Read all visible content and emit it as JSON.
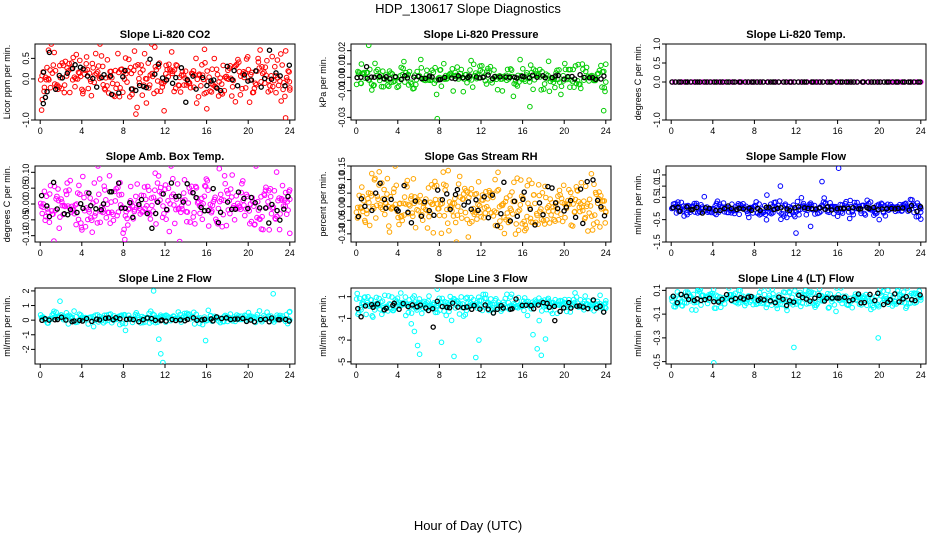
{
  "figure": {
    "title": "HDP_130617  Slope Diagnostics",
    "xlabel": "Hour of Day (UTC)"
  },
  "chart_data": [
    {
      "type": "scatter",
      "title": "Slope Li-820 CO2",
      "ylabel": "Licor ppm per min.",
      "xlim": [
        -0.5,
        24.5
      ],
      "ylim": [
        -1.0,
        0.85
      ],
      "xticks": [
        0,
        4,
        8,
        12,
        16,
        20,
        24
      ],
      "yticks": [
        -1.0,
        0.0,
        0.5
      ],
      "ytick_labels": [
        "-1.0",
        "0.0",
        "0.5"
      ],
      "grid": false,
      "series": [
        {
          "color": "#ff0000",
          "center": 0.05,
          "spread": 0.32,
          "count": 300,
          "outliers": [
            [
              0.2,
              -0.5
            ],
            [
              0.8,
              0.7
            ],
            [
              15.8,
              0.72
            ],
            [
              23.6,
              -0.95
            ]
          ]
        },
        {
          "color": "#000000",
          "center": 0.0,
          "spread": 0.22,
          "count": 60,
          "outliers": [
            [
              0.3,
              -0.6
            ],
            [
              0.5,
              -0.45
            ]
          ]
        }
      ]
    },
    {
      "type": "scatter",
      "title": "Slope Li-820 Pressure",
      "ylabel": "kPa per min.",
      "xlim": [
        -0.5,
        24.5
      ],
      "ylim": [
        -0.032,
        0.025
      ],
      "xticks": [
        0,
        4,
        8,
        12,
        16,
        20,
        24
      ],
      "yticks": [
        -0.03,
        -0.01,
        0.0,
        0.01,
        0.02
      ],
      "ytick_labels": [
        "-0.03",
        "-0.01",
        "0.00",
        "0.01",
        "0.02"
      ],
      "grid": false,
      "series": [
        {
          "color": "#00cc00",
          "center": 0.0,
          "spread": 0.005,
          "count": 260,
          "outliers": [
            [
              1.2,
              0.024
            ],
            [
              7.8,
              -0.031
            ],
            [
              16.7,
              -0.022
            ],
            [
              23.8,
              -0.025
            ],
            [
              0.5,
              0.01
            ],
            [
              18.5,
              0.012
            ]
          ]
        },
        {
          "color": "#000000",
          "center": 0.0,
          "spread": 0.0008,
          "count": 60,
          "outliers": [
            [
              1.0,
              0.008
            ]
          ]
        }
      ]
    },
    {
      "type": "scatter",
      "title": "Slope Li-820 Temp.",
      "ylabel": "degrees C per min.",
      "xlim": [
        -0.5,
        24.5
      ],
      "ylim": [
        -1.0,
        1.0
      ],
      "xticks": [
        0,
        4,
        8,
        12,
        16,
        20,
        24
      ],
      "yticks": [
        -1.0,
        0.0,
        0.5,
        1.0
      ],
      "ytick_labels": [
        "-1.0",
        "0.0",
        "0.5",
        "1.0"
      ],
      "grid": false,
      "series": [
        {
          "color": "#ff00ff",
          "center": 0.0,
          "spread": 0.0,
          "count": 80,
          "outliers": []
        },
        {
          "color": "#000000",
          "center": 0.0,
          "spread": 0.0,
          "count": 80,
          "outliers": []
        }
      ]
    },
    {
      "type": "scatter",
      "title": "Slope Amb. Box Temp.",
      "ylabel": "degrees C per min.",
      "xlim": [
        -0.5,
        24.5
      ],
      "ylim": [
        -0.12,
        0.12
      ],
      "xticks": [
        0,
        4,
        8,
        12,
        16,
        20,
        24
      ],
      "yticks": [
        -0.1,
        -0.05,
        0.0,
        0.05,
        0.1
      ],
      "ytick_labels": [
        "-0.10",
        "-0.05",
        "0.00",
        "0.05",
        "0.10"
      ],
      "grid": false,
      "series": [
        {
          "color": "#ff00ff",
          "center": 0.0,
          "spread": 0.045,
          "count": 320,
          "outliers": []
        },
        {
          "color": "#000000",
          "center": 0.0,
          "spread": 0.03,
          "count": 60,
          "outliers": []
        }
      ]
    },
    {
      "type": "scatter",
      "title": "Slope Gas Stream RH",
      "ylabel": "percent per min.",
      "xlim": [
        -0.5,
        24.5
      ],
      "ylim": [
        -0.13,
        0.15
      ],
      "xticks": [
        0,
        4,
        8,
        12,
        16,
        20,
        24
      ],
      "yticks": [
        -0.1,
        -0.05,
        0.0,
        0.05,
        0.1,
        0.15
      ],
      "ytick_labels": [
        "-0.10",
        "-0.05",
        "0.00",
        "0.05",
        "0.10",
        "0.15"
      ],
      "grid": false,
      "series": [
        {
          "color": "#ffa500",
          "center": 0.0,
          "spread": 0.05,
          "count": 340,
          "outliers": []
        },
        {
          "color": "#000000",
          "center": 0.0,
          "spread": 0.04,
          "count": 60,
          "outliers": []
        }
      ]
    },
    {
      "type": "scatter",
      "title": "Slope Sample Flow",
      "ylabel": "ml/min per min.",
      "xlim": [
        -0.5,
        24.5
      ],
      "ylim": [
        -1.5,
        1.9
      ],
      "xticks": [
        0,
        4,
        8,
        12,
        16,
        20,
        24
      ],
      "yticks": [
        -1.5,
        -0.5,
        0.5,
        1.0,
        1.5
      ],
      "ytick_labels": [
        "-1.5",
        "-0.5",
        "0.5",
        "1.0",
        "1.5"
      ],
      "grid": false,
      "series": [
        {
          "color": "#0000ff",
          "center": 0.0,
          "spread": 0.18,
          "count": 300,
          "outliers": [
            [
              10.5,
              1.0
            ],
            [
              12.0,
              -1.1
            ],
            [
              14.5,
              1.2
            ],
            [
              16.1,
              1.8
            ],
            [
              13.4,
              -0.8
            ],
            [
              9.2,
              0.6
            ],
            [
              20.0,
              -0.5
            ]
          ]
        },
        {
          "color": "#000000",
          "center": 0.0,
          "spread": 0.05,
          "count": 60,
          "outliers": []
        }
      ]
    },
    {
      "type": "scatter",
      "title": "Slope Line 2 Flow",
      "ylabel": "ml/min per min.",
      "xlim": [
        -0.5,
        24.5
      ],
      "ylim": [
        -3.0,
        2.2
      ],
      "xticks": [
        0,
        4,
        8,
        12,
        16,
        20,
        24
      ],
      "yticks": [
        -2,
        -1,
        0,
        1,
        2
      ],
      "ytick_labels": [
        "-2",
        "-1",
        "0",
        "1",
        "2"
      ],
      "grid": false,
      "series": [
        {
          "color": "#00ffff",
          "center": 0.15,
          "spread": 0.2,
          "count": 260,
          "outliers": [
            [
              1.9,
              1.3
            ],
            [
              10.9,
              2.0
            ],
            [
              11.4,
              -1.3
            ],
            [
              11.6,
              -2.3
            ],
            [
              11.8,
              -2.9
            ],
            [
              15.9,
              -1.4
            ],
            [
              22.4,
              1.8
            ],
            [
              8.2,
              -0.7
            ]
          ]
        },
        {
          "color": "#000000",
          "center": 0.05,
          "spread": 0.08,
          "count": 60,
          "outliers": []
        }
      ]
    },
    {
      "type": "scatter",
      "title": "Slope Line 3 Flow",
      "ylabel": "ml/min per min.",
      "xlim": [
        -0.5,
        24.5
      ],
      "ylim": [
        -5.2,
        1.8
      ],
      "xticks": [
        0,
        4,
        8,
        12,
        16,
        20,
        24
      ],
      "yticks": [
        -5,
        -3,
        -1,
        1
      ],
      "ytick_labels": [
        "-5",
        "-3",
        "-1",
        "1"
      ],
      "grid": false,
      "series": [
        {
          "color": "#00ffff",
          "center": 0.3,
          "spread": 0.45,
          "count": 320,
          "outliers": [
            [
              5.6,
              -2.2
            ],
            [
              5.9,
              -3.5
            ],
            [
              6.1,
              -4.3
            ],
            [
              7.8,
              1.7
            ],
            [
              8.2,
              -3.2
            ],
            [
              9.4,
              -4.5
            ],
            [
              11.8,
              -3.0
            ],
            [
              11.5,
              -4.6
            ],
            [
              17.0,
              -2.5
            ],
            [
              17.4,
              -3.8
            ],
            [
              17.8,
              -4.4
            ],
            [
              18.2,
              -2.9
            ],
            [
              5.3,
              -1.5
            ],
            [
              17.6,
              -1.2
            ]
          ]
        },
        {
          "color": "#000000",
          "center": 0.0,
          "spread": 0.25,
          "count": 60,
          "outliers": [
            [
              7.4,
              -1.8
            ],
            [
              19.1,
              -1.2
            ]
          ]
        }
      ]
    },
    {
      "type": "scatter",
      "title": "Slope Line 4 (LT) Flow",
      "ylabel": "ml/min per min.",
      "xlim": [
        -0.5,
        24.5
      ],
      "ylim": [
        -0.52,
        0.12
      ],
      "xticks": [
        0,
        4,
        8,
        12,
        16,
        20,
        24
      ],
      "yticks": [
        -0.5,
        -0.3,
        -0.1,
        0.1
      ],
      "ytick_labels": [
        "-0.5",
        "-0.3",
        "-0.1",
        "0.1"
      ],
      "grid": false,
      "series": [
        {
          "color": "#00ffff",
          "center": 0.03,
          "spread": 0.04,
          "count": 300,
          "outliers": [
            [
              4.1,
              -0.51
            ],
            [
              11.8,
              -0.38
            ],
            [
              19.9,
              -0.3
            ],
            [
              4.3,
              -0.05
            ]
          ]
        },
        {
          "color": "#000000",
          "center": 0.03,
          "spread": 0.02,
          "count": 60,
          "outliers": []
        }
      ]
    }
  ]
}
